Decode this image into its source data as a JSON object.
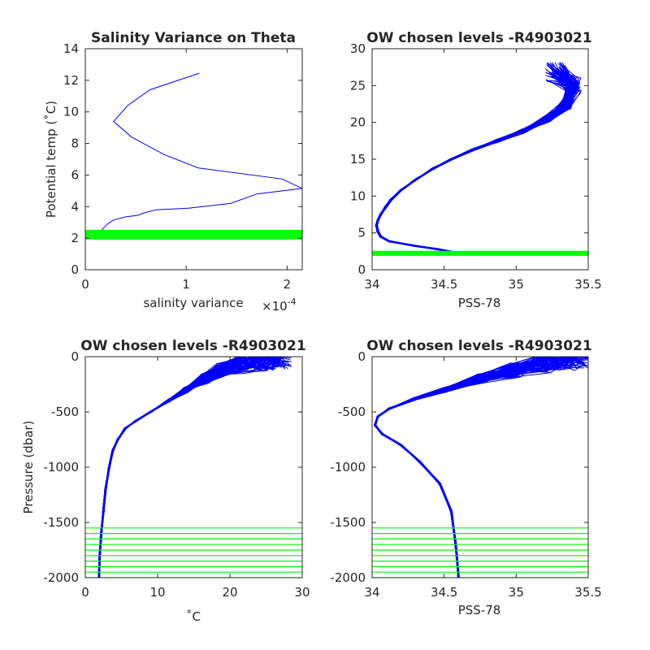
{
  "colors": {
    "profile": "#0000ff",
    "levels": "#00ff00",
    "axis": "#262626",
    "background": "#ffffff"
  },
  "chart_data": [
    {
      "type": "line",
      "title": "Salinity Variance on Theta",
      "xlabel": "salinity variance",
      "x_exponent_base": "×10",
      "x_exponent": "-4",
      "ylabel": "Potential temp (˚C)",
      "xlim": [
        0,
        2.15
      ],
      "ylim": [
        0,
        14
      ],
      "xticks": [
        "0",
        "1",
        "2"
      ],
      "yticks": [
        "0",
        "2",
        "4",
        "6",
        "8",
        "10",
        "12",
        "14"
      ],
      "series": [
        {
          "role": "variance-profile",
          "color": "#0000ff",
          "points": [
            [
              1.13,
              12.45
            ],
            [
              0.64,
              11.4
            ],
            [
              0.42,
              10.4
            ],
            [
              0.28,
              9.4
            ],
            [
              0.46,
              8.4
            ],
            [
              0.78,
              7.3
            ],
            [
              1.12,
              6.45
            ],
            [
              1.95,
              5.75
            ],
            [
              2.15,
              5.15
            ],
            [
              1.7,
              4.8
            ],
            [
              1.44,
              4.2
            ],
            [
              1.02,
              3.9
            ],
            [
              0.7,
              3.8
            ],
            [
              0.58,
              3.6
            ],
            [
              0.52,
              3.45
            ],
            [
              0.4,
              3.35
            ],
            [
              0.28,
              3.15
            ],
            [
              0.22,
              2.9
            ],
            [
              0.16,
              2.5
            ]
          ]
        },
        {
          "role": "chosen-levels",
          "color": "#00ff00",
          "type": "hlines",
          "values": [
            1.95,
            2.0,
            2.05,
            2.1,
            2.15,
            2.2,
            2.25,
            2.3,
            2.35,
            2.4,
            2.45,
            2.5
          ]
        }
      ]
    },
    {
      "type": "line",
      "title": "OW chosen levels -R4903021",
      "xlabel": "PSS-78",
      "ylabel": "",
      "xlim": [
        34,
        35.5
      ],
      "ylim": [
        0,
        30
      ],
      "xticks": [
        "34",
        "34.5",
        "35",
        "35.5"
      ],
      "yticks": [
        "0",
        "5",
        "10",
        "15",
        "20",
        "25",
        "30"
      ],
      "series": [
        {
          "role": "theta-salinity-profiles",
          "color": "#0000ff",
          "count": 70,
          "points": [
            [
              34.58,
              2.35
            ],
            [
              34.45,
              2.8
            ],
            [
              34.28,
              3.3
            ],
            [
              34.12,
              3.85
            ],
            [
              34.06,
              4.5
            ],
            [
              34.04,
              5.2
            ],
            [
              34.03,
              6.0
            ],
            [
              34.04,
              6.7
            ],
            [
              34.06,
              7.5
            ],
            [
              34.09,
              8.4
            ],
            [
              34.13,
              9.5
            ],
            [
              34.2,
              10.8
            ],
            [
              34.3,
              12.2
            ],
            [
              34.42,
              13.7
            ],
            [
              34.55,
              15.0
            ],
            [
              34.7,
              16.3
            ],
            [
              34.87,
              17.5
            ],
            [
              35.05,
              18.8
            ],
            [
              35.22,
              20.5
            ],
            [
              35.35,
              22.5
            ],
            [
              35.4,
              25.0
            ],
            [
              35.27,
              26.8
            ]
          ]
        },
        {
          "role": "chosen-levels",
          "color": "#00ff00",
          "type": "hlines",
          "values": [
            1.95,
            2.0,
            2.05,
            2.1,
            2.15,
            2.2,
            2.25,
            2.3,
            2.35,
            2.4,
            2.45,
            2.5
          ]
        }
      ]
    },
    {
      "type": "line",
      "title": "OW chosen levels -R4903021",
      "xlabel": "˚C",
      "ylabel": "Pressure (dbar)",
      "xlim": [
        0,
        30
      ],
      "ylim": [
        -2000,
        0
      ],
      "xticks": [
        "0",
        "10",
        "20",
        "30"
      ],
      "yticks": [
        "-2000",
        "-1500",
        "-1000",
        "-500",
        "0"
      ],
      "series": [
        {
          "role": "temperature-profiles",
          "color": "#0000ff",
          "count": 70,
          "points": [
            [
              1.9,
              -2000
            ],
            [
              2.0,
              -1800
            ],
            [
              2.2,
              -1600
            ],
            [
              2.5,
              -1400
            ],
            [
              2.8,
              -1200
            ],
            [
              3.3,
              -1000
            ],
            [
              3.8,
              -850
            ],
            [
              4.5,
              -750
            ],
            [
              5.5,
              -650
            ],
            [
              7.0,
              -580
            ],
            [
              9.0,
              -500
            ],
            [
              11.5,
              -400
            ],
            [
              14.0,
              -300
            ],
            [
              16.5,
              -200
            ],
            [
              19.0,
              -120
            ],
            [
              22.0,
              -60
            ],
            [
              25.0,
              -20
            ],
            [
              27.0,
              -5
            ]
          ]
        },
        {
          "role": "chosen-levels",
          "color": "#00ff00",
          "type": "hlines",
          "values": [
            -1550,
            -1600,
            -1650,
            -1700,
            -1750,
            -1800,
            -1850,
            -1900,
            -1950,
            -2000
          ]
        }
      ]
    },
    {
      "type": "line",
      "title": "OW chosen levels -R4903021",
      "xlabel": "PSS-78",
      "ylabel": "",
      "xlim": [
        34,
        35.5
      ],
      "ylim": [
        -2000,
        0
      ],
      "xticks": [
        "34",
        "34.5",
        "35",
        "35.5"
      ],
      "yticks": [
        "-2000",
        "-1500",
        "-1000",
        "-500",
        "0"
      ],
      "series": [
        {
          "role": "salinity-profiles",
          "color": "#0000ff",
          "count": 70,
          "points": [
            [
              34.6,
              -2000
            ],
            [
              34.58,
              -1700
            ],
            [
              34.55,
              -1400
            ],
            [
              34.47,
              -1150
            ],
            [
              34.33,
              -950
            ],
            [
              34.2,
              -800
            ],
            [
              34.07,
              -700
            ],
            [
              34.02,
              -620
            ],
            [
              34.04,
              -540
            ],
            [
              34.12,
              -470
            ],
            [
              34.3,
              -380
            ],
            [
              34.5,
              -300
            ],
            [
              34.75,
              -200
            ],
            [
              35.0,
              -120
            ],
            [
              35.2,
              -60
            ],
            [
              35.35,
              -20
            ],
            [
              35.45,
              0
            ]
          ]
        },
        {
          "role": "chosen-levels",
          "color": "#00ff00",
          "type": "hlines",
          "values": [
            -1550,
            -1600,
            -1650,
            -1700,
            -1750,
            -1800,
            -1850,
            -1900,
            -1950,
            -2000
          ]
        }
      ]
    }
  ]
}
